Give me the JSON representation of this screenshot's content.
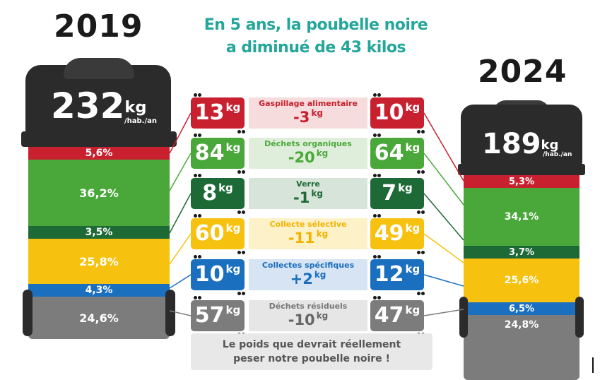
{
  "headline": {
    "line1": "En 5 ans, la poubelle noire",
    "line2": "a diminué de 43 kilos"
  },
  "years": {
    "left": "2019",
    "right": "2024"
  },
  "totals": {
    "left": {
      "value": "232",
      "unit": "kg",
      "per": "/hab./an"
    },
    "right": {
      "value": "189",
      "unit": "kg",
      "per": "/hab./an"
    }
  },
  "bin_2019": [
    "5,6%",
    "36,2%",
    "3,5%",
    "25,8%",
    "4,3%",
    "24,6%"
  ],
  "bin_2024": [
    "5,3%",
    "34,1%",
    "3,7%",
    "25,6%",
    "6,5%",
    "24,8%"
  ],
  "categories": [
    {
      "label": "Gaspillage alimentaire",
      "v2019": "13",
      "v2024": "10",
      "delta": "-3",
      "unit": "kg",
      "color": "#c8202f",
      "bg": "#f6dcdc",
      "labelColor": "#c8202f",
      "deltaColor": "#c8202f"
    },
    {
      "label": "Déchets organiques",
      "v2019": "84",
      "v2024": "64",
      "delta": "-20",
      "unit": "kg",
      "color": "#4aa83a",
      "bg": "#dfeeda",
      "labelColor": "#4aa83a",
      "deltaColor": "#4aa83a"
    },
    {
      "label": "Verre",
      "v2019": "8",
      "v2024": "7",
      "delta": "-1",
      "unit": "kg",
      "color": "#1d6a36",
      "bg": "#d7e4da",
      "labelColor": "#1d6a36",
      "deltaColor": "#1d6a36"
    },
    {
      "label": "Collecte sélective",
      "v2019": "60",
      "v2024": "49",
      "delta": "-11",
      "unit": "kg",
      "color": "#f6c10f",
      "bg": "#fdf1c7",
      "labelColor": "#f0b400",
      "deltaColor": "#f0b400"
    },
    {
      "label": "Collectes spécifiques",
      "v2019": "10",
      "v2024": "12",
      "delta": "+2",
      "unit": "kg",
      "color": "#1a6fbf",
      "bg": "#d6e4f3",
      "labelColor": "#1a6fbf",
      "deltaColor": "#1a6fbf"
    },
    {
      "label": "Déchets résiduels",
      "v2019": "57",
      "v2024": "47",
      "delta": "-10",
      "unit": "kg",
      "color": "#7c7c7c",
      "bg": "#e6e6e6",
      "labelColor": "#777777",
      "deltaColor": "#666666"
    }
  ],
  "footer": {
    "line1": "Le poids que devrait réellement",
    "line2": "peser notre poubelle noire !"
  }
}
